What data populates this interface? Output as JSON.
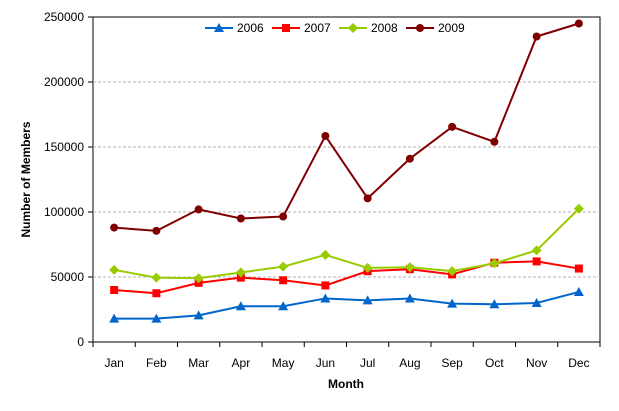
{
  "chart_data": {
    "type": "line",
    "title": "",
    "xlabel": "Month",
    "ylabel": "Number of Members",
    "categories": [
      "Jan",
      "Feb",
      "Mar",
      "Apr",
      "May",
      "Jun",
      "Jul",
      "Aug",
      "Sep",
      "Oct",
      "Nov",
      "Dec"
    ],
    "ylim": [
      0,
      250000
    ],
    "yticks": [
      0,
      50000,
      100000,
      150000,
      200000,
      250000
    ],
    "grid": "horizontal dashed",
    "legend_position": "top-center",
    "series": [
      {
        "name": "2006",
        "color": "#0066cc",
        "marker": "triangle",
        "values": [
          18000,
          18000,
          20500,
          27500,
          27500,
          33500,
          32000,
          33500,
          29500,
          29000,
          30000,
          38500
        ]
      },
      {
        "name": "2007",
        "color": "#ff0000",
        "marker": "square",
        "values": [
          40000,
          37500,
          45500,
          49500,
          47500,
          43500,
          54500,
          56000,
          52000,
          61000,
          62000,
          56500
        ]
      },
      {
        "name": "2008",
        "color": "#99cc00",
        "marker": "diamond",
        "values": [
          55500,
          49500,
          49000,
          53500,
          58000,
          67000,
          57000,
          57500,
          54500,
          60500,
          70500,
          102500
        ]
      },
      {
        "name": "2009",
        "color": "#800000",
        "marker": "circle",
        "values": [
          88000,
          85500,
          102000,
          95000,
          96500,
          158500,
          110500,
          141000,
          165500,
          154000,
          235000,
          245000
        ]
      }
    ]
  }
}
